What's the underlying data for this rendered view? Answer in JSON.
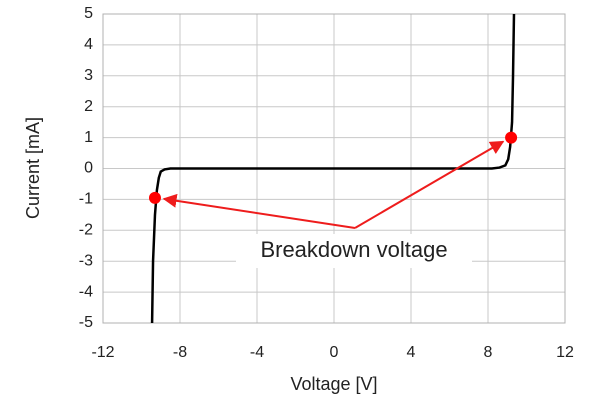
{
  "chart_data": {
    "type": "line",
    "x_label": "Voltage [V]",
    "y_label": "Current [mA]",
    "x": [
      -9.45,
      -9.4,
      -9.3,
      -9.2,
      -9.1,
      -9.0,
      -8.8,
      -8.5,
      0,
      8.2,
      8.6,
      8.9,
      9.05,
      9.15,
      9.25,
      9.3,
      9.35
    ],
    "values": [
      -5,
      -3,
      -1.5,
      -0.7,
      -0.3,
      -0.1,
      -0.03,
      0,
      0,
      0,
      0.03,
      0.1,
      0.3,
      0.7,
      1.5,
      3,
      5
    ],
    "color": "#000000",
    "points": {
      "x": [
        -9.3,
        9.2
      ],
      "values": [
        -0.95,
        1.0
      ],
      "color": "#ff0000"
    },
    "annotation": "Breakdown voltage",
    "xlim": [
      -12,
      12
    ],
    "xticks": [
      -12,
      -8,
      -4,
      0,
      4,
      8,
      12
    ],
    "ylim": [
      -5,
      5
    ],
    "yticks": [
      -5,
      -4,
      -3,
      -2,
      -1,
      0,
      1,
      2,
      3,
      4,
      5
    ],
    "grid": true
  }
}
